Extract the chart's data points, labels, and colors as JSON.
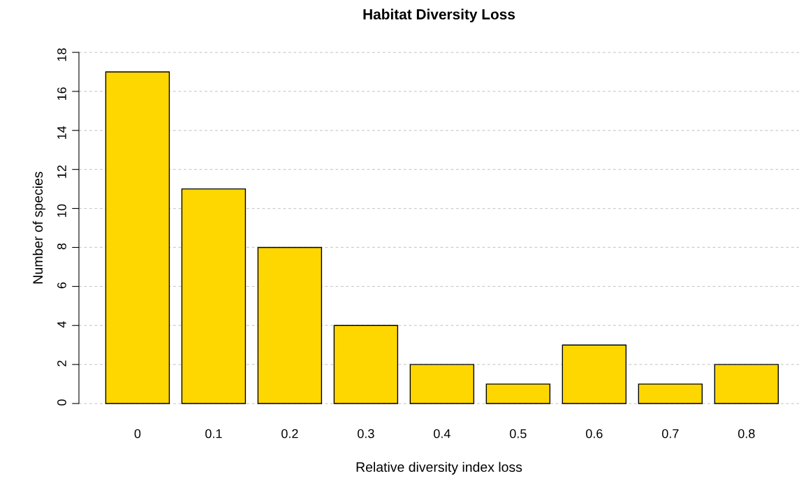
{
  "chart_data": {
    "type": "bar",
    "title": "Habitat Diversity Loss",
    "xlabel": "Relative diversity index loss",
    "ylabel": "Number of species",
    "categories": [
      "0",
      "0.1",
      "0.2",
      "0.3",
      "0.4",
      "0.5",
      "0.6",
      "0.7",
      "0.8"
    ],
    "values": [
      17,
      11,
      8,
      4,
      2,
      1,
      3,
      1,
      2
    ],
    "color": "#ffd700",
    "ylim": [
      0,
      18
    ],
    "yticks": [
      0,
      2,
      4,
      6,
      8,
      10,
      12,
      14,
      16,
      18
    ],
    "grid": "y"
  }
}
